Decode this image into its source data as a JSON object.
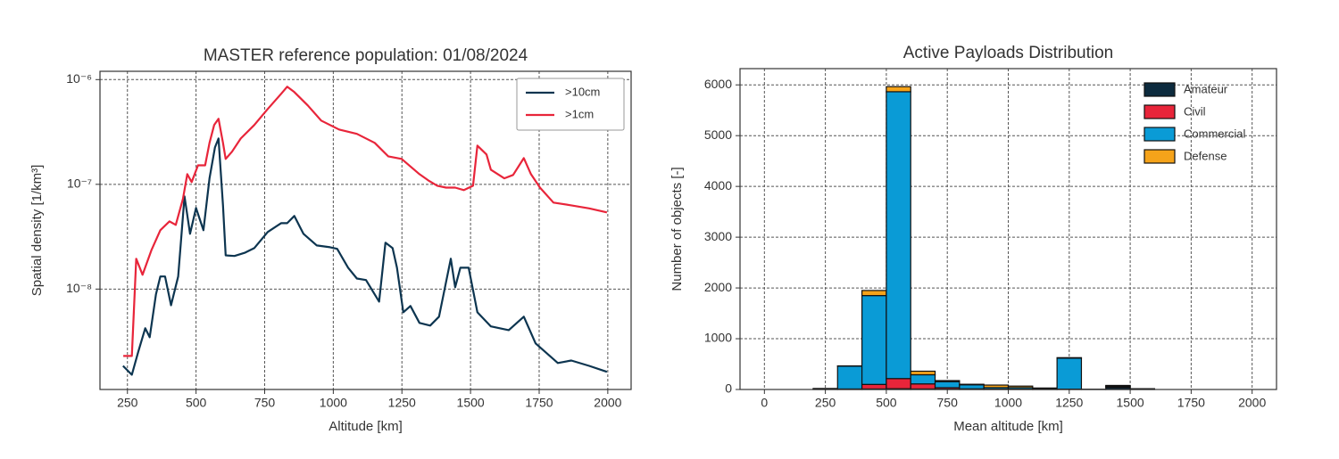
{
  "chart_data": [
    {
      "type": "line",
      "title": "MASTER reference population: 01/08/2024",
      "xlabel": "Altitude [km]",
      "ylabel": "Spatial density [1/km³]",
      "xlim": [
        150,
        2085
      ],
      "xticks": [
        250,
        500,
        750,
        1000,
        1250,
        1500,
        1750,
        2000
      ],
      "ylim": [
        1.1e-09,
        1.2e-06
      ],
      "yscale": "log",
      "yticks": [
        {
          "value": 1e-08,
          "label": "10⁻⁸"
        },
        {
          "value": 1e-07,
          "label": "10⁻⁷"
        },
        {
          "value": 1e-06,
          "label": "10⁻⁶"
        }
      ],
      "grid": true,
      "legend": "upper right",
      "series": [
        {
          "name": ">10cm",
          "color": "#0d3550",
          "x": [
            234,
            266,
            289,
            315,
            331,
            354,
            370,
            387,
            409,
            435,
            458,
            478,
            500,
            527,
            549,
            569,
            582,
            598,
            608,
            640,
            679,
            712,
            761,
            810,
            832,
            858,
            891,
            940,
            988,
            1014,
            1054,
            1086,
            1119,
            1167,
            1190,
            1216,
            1232,
            1255,
            1281,
            1314,
            1353,
            1385,
            1428,
            1444,
            1463,
            1493,
            1525,
            1574,
            1639,
            1694,
            1737,
            1818,
            1867,
            1932,
            1997
          ],
          "values": [
            1.85e-09,
            1.52e-09,
            2.49e-09,
            4.23e-09,
            3.47e-09,
            8.9e-09,
            1.32e-08,
            1.32e-08,
            7e-09,
            1.32e-08,
            7.67e-08,
            3.37e-08,
            5.94e-08,
            3.65e-08,
            1.14e-07,
            2.25e-07,
            2.74e-07,
            6.3e-08,
            2.1e-08,
            2.07e-08,
            2.23e-08,
            2.46e-08,
            3.51e-08,
            4.26e-08,
            4.26e-08,
            4.99e-08,
            3.37e-08,
            2.61e-08,
            2.51e-08,
            2.42e-08,
            1.6e-08,
            1.26e-08,
            1.22e-08,
            7.6e-09,
            2.77e-08,
            2.46e-08,
            1.6e-08,
            6e-09,
            6.9e-09,
            4.75e-09,
            4.48e-09,
            5.45e-09,
            1.95e-08,
            1.04e-08,
            1.6e-08,
            1.6e-08,
            6e-09,
            4.4e-09,
            4.06e-09,
            5.45e-09,
            3.03e-09,
            1.97e-09,
            2.08e-09,
            1.85e-09,
            1.62e-09
          ]
        },
        {
          "name": ">1cm",
          "color": "#e8253a",
          "x": [
            235,
            266,
            282,
            305,
            338,
            370,
            403,
            426,
            452,
            468,
            484,
            507,
            533,
            549,
            566,
            582,
            598,
            608,
            631,
            663,
            712,
            761,
            810,
            832,
            858,
            907,
            956,
            1021,
            1086,
            1151,
            1200,
            1249,
            1314,
            1346,
            1379,
            1411,
            1444,
            1476,
            1509,
            1525,
            1558,
            1574,
            1623,
            1655,
            1694,
            1720,
            1753,
            1802,
            1867,
            1932,
            1997
          ],
          "values": [
            2.3e-09,
            2.3e-09,
            1.95e-08,
            1.37e-08,
            2.37e-08,
            3.65e-08,
            4.43e-08,
            4.1e-08,
            7.24e-08,
            1.25e-07,
            1.05e-07,
            1.52e-07,
            1.52e-07,
            2.49e-07,
            3.68e-07,
            4.22e-07,
            2.49e-07,
            1.75e-07,
            2.05e-07,
            2.74e-07,
            3.68e-07,
            5.24e-07,
            7.31e-07,
            8.55e-07,
            7.6e-07,
            5.67e-07,
            4.06e-07,
            3.34e-07,
            3.03e-07,
            2.49e-07,
            1.85e-07,
            1.75e-07,
            1.25e-07,
            1.09e-07,
            9.7e-08,
            9.3e-08,
            9.3e-08,
            8.8e-08,
            9.7e-08,
            2.34e-07,
            1.93e-07,
            1.38e-07,
            1.14e-07,
            1.23e-07,
            1.78e-07,
            1.25e-07,
            9.3e-08,
            6.7e-08,
            6.3e-08,
            5.9e-08,
            5.4e-08
          ]
        }
      ]
    },
    {
      "type": "histogram",
      "stacked": true,
      "title": "Active Payloads Distribution",
      "xlabel": "Mean altitude [km]",
      "ylabel": "Number of objects [-]",
      "xlim": [
        -100,
        2100
      ],
      "xticks": [
        0,
        250,
        500,
        750,
        1000,
        1250,
        1500,
        1750,
        2000
      ],
      "ylim": [
        0,
        6320
      ],
      "yticks": [
        0,
        1000,
        2000,
        3000,
        4000,
        5000,
        6000
      ],
      "grid": true,
      "legend": "upper right",
      "edgecolor": "#111111",
      "bins": [
        0,
        100,
        200,
        300,
        400,
        500,
        600,
        700,
        800,
        900,
        1000,
        1100,
        1200,
        1300,
        1400,
        1500,
        1600,
        1700,
        1800,
        1900,
        2000
      ],
      "series": [
        {
          "name": "Amateur",
          "color": "#0d2b3e",
          "values": [
            0,
            0,
            3,
            5,
            10,
            15,
            10,
            5,
            3,
            2,
            2,
            1,
            2,
            0,
            40,
            5,
            0,
            0,
            0,
            0
          ]
        },
        {
          "name": "Civil",
          "color": "#e8253a",
          "values": [
            0,
            0,
            2,
            5,
            90,
            200,
            100,
            30,
            10,
            5,
            5,
            3,
            5,
            0,
            20,
            3,
            0,
            0,
            0,
            0
          ]
        },
        {
          "name": "Commercial",
          "color": "#0a9bd6",
          "values": [
            0,
            0,
            15,
            450,
            1750,
            5650,
            180,
            120,
            80,
            30,
            30,
            20,
            610,
            5,
            10,
            5,
            0,
            0,
            0,
            0
          ]
        },
        {
          "name": "Defense",
          "color": "#f5a31a",
          "values": [
            0,
            0,
            0,
            5,
            100,
            100,
            70,
            20,
            10,
            50,
            30,
            5,
            10,
            0,
            10,
            2,
            0,
            0,
            0,
            0
          ]
        }
      ]
    }
  ]
}
